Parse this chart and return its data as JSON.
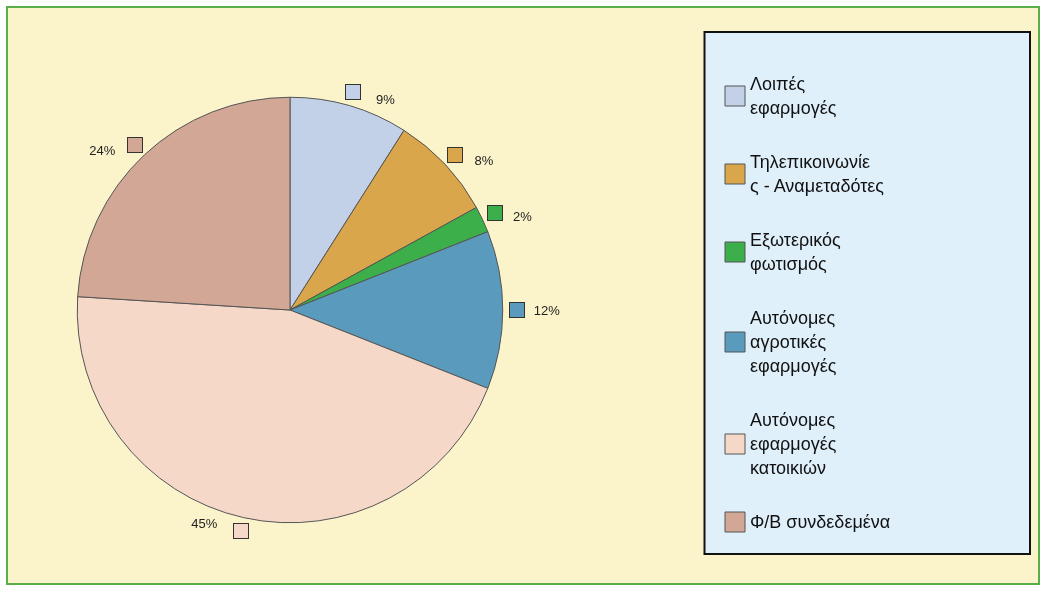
{
  "chart_data": {
    "type": "pie",
    "categories": [
      "Λοιπές εφαρμογές",
      "Τηλεπικοινωνίες - Αναμεταδότες",
      "Εξωτερικός φωτισμός",
      "Αυτόνομες αγροτικές εφαρμογές",
      "Αυτόνομες εφαρμογές κατοικιών",
      "Φ/Β συνδεδεμένα"
    ],
    "values": [
      9,
      8,
      2,
      12,
      45,
      24
    ],
    "colors": [
      "#c3d1e8",
      "#d9a64c",
      "#3cae4a",
      "#5a9bbd",
      "#f6d8c8",
      "#d2a795"
    ],
    "value_labels": [
      "9%",
      "8%",
      "2%",
      "12%",
      "45%",
      "24%"
    ],
    "legend": "right"
  }
}
